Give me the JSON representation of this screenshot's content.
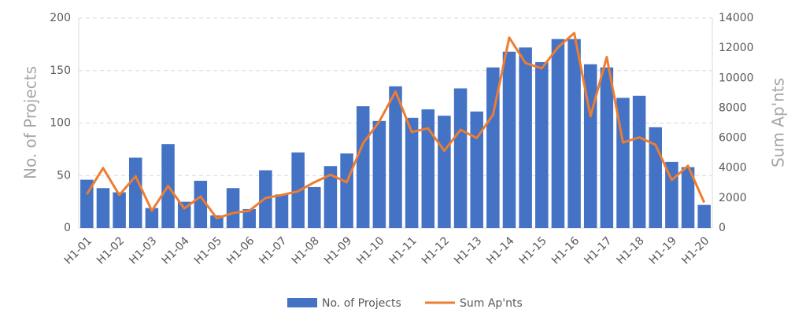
{
  "chart_data": {
    "type": "bar",
    "categories": [
      "H1-01",
      null,
      "H1-02",
      null,
      "H1-03",
      null,
      "H1-04",
      null,
      "H1-05",
      null,
      "H1-06",
      null,
      "H1-07",
      null,
      "H1-08",
      null,
      "H1-09",
      null,
      "H1-10",
      null,
      "H1-11",
      null,
      "H1-12",
      null,
      "H1-13",
      null,
      "H1-14",
      null,
      "H1-15",
      null,
      "H1-16",
      null,
      "H1-17",
      null,
      "H1-18",
      null,
      "H1-19",
      null,
      "H1-20"
    ],
    "series": [
      {
        "name": "No. of Projects",
        "type": "bar",
        "color": "#4472c4",
        "values": [
          46,
          38,
          34,
          67,
          19,
          80,
          25,
          45,
          12,
          38,
          18,
          55,
          32,
          72,
          39,
          59,
          71,
          116,
          102,
          135,
          105,
          113,
          107,
          133,
          111,
          153,
          168,
          172,
          158,
          180,
          180,
          156,
          153,
          124,
          126,
          96,
          63,
          58,
          22
        ]
      },
      {
        "name": "Sum Ap'nts",
        "type": "line",
        "axis": "y2",
        "color": "#ed7d31",
        "values": [
          2250,
          4000,
          2200,
          3450,
          1150,
          2800,
          1300,
          2100,
          650,
          1000,
          1150,
          2000,
          2200,
          2450,
          3050,
          3550,
          3050,
          5650,
          7100,
          9100,
          6400,
          6650,
          5150,
          6550,
          6000,
          7550,
          12700,
          11000,
          10650,
          12050,
          13000,
          7450,
          11400,
          5700,
          6050,
          5550,
          3200,
          4150,
          1700
        ]
      }
    ],
    "y_label": "No. of Projects",
    "y2_label": "Sum Ap'nts",
    "ylim": [
      0,
      200
    ],
    "yticks": [
      0,
      50,
      100,
      150,
      200
    ],
    "y2lim": [
      0,
      14000
    ],
    "y2ticks": [
      0,
      2000,
      4000,
      6000,
      8000,
      10000,
      12000,
      14000
    ],
    "grid": true,
    "legend": "bottom"
  }
}
